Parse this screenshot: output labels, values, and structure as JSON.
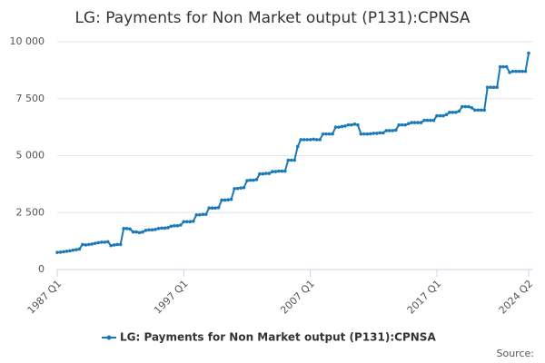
{
  "chart_data": {
    "type": "line",
    "title": "LG: Payments for Non Market output (P131):CPNSA",
    "source": "Source:",
    "categories": [
      "1987 Q1",
      null,
      null,
      null,
      null,
      null,
      null,
      null,
      null,
      null,
      null,
      null,
      null,
      null,
      null,
      null,
      null,
      null,
      null,
      null,
      null,
      null,
      null,
      null,
      null,
      null,
      null,
      null,
      null,
      null,
      null,
      null,
      null,
      null,
      null,
      null,
      null,
      null,
      null,
      null,
      "1997 Q1",
      null,
      null,
      null,
      null,
      null,
      null,
      null,
      null,
      null,
      null,
      null,
      null,
      null,
      null,
      null,
      null,
      null,
      null,
      null,
      null,
      null,
      null,
      null,
      null,
      null,
      null,
      null,
      null,
      null,
      null,
      null,
      null,
      null,
      null,
      null,
      null,
      null,
      null,
      null,
      "2007 Q1",
      null,
      null,
      null,
      null,
      null,
      null,
      null,
      null,
      null,
      null,
      null,
      null,
      null,
      null,
      null,
      null,
      null,
      null,
      null,
      null,
      null,
      null,
      null,
      null,
      null,
      null,
      null,
      null,
      null,
      null,
      null,
      null,
      null,
      null,
      null,
      null,
      null,
      null,
      null,
      "2017 Q1",
      null,
      null,
      null,
      null,
      null,
      null,
      null,
      null,
      null,
      null,
      null,
      null,
      null,
      null,
      null,
      null,
      null,
      null,
      null,
      null,
      null,
      null,
      null,
      null,
      null,
      null,
      null,
      null,
      "2024 Q2"
    ],
    "series": [
      {
        "name": "LG: Payments for Non Market output (P131):CPNSA",
        "color": "#1a7ab8",
        "values": [
          750,
          760,
          780,
          800,
          820,
          850,
          870,
          900,
          1100,
          1080,
          1100,
          1120,
          1150,
          1180,
          1200,
          1200,
          1220,
          1050,
          1080,
          1100,
          1100,
          1800,
          1800,
          1780,
          1650,
          1650,
          1620,
          1650,
          1720,
          1740,
          1740,
          1760,
          1800,
          1820,
          1820,
          1840,
          1900,
          1920,
          1920,
          1950,
          2100,
          2100,
          2100,
          2120,
          2400,
          2400,
          2420,
          2420,
          2700,
          2700,
          2700,
          2720,
          3050,
          3050,
          3060,
          3080,
          3550,
          3560,
          3580,
          3600,
          3900,
          3920,
          3920,
          3950,
          4200,
          4200,
          4220,
          4220,
          4300,
          4300,
          4320,
          4320,
          4320,
          4800,
          4800,
          4800,
          5400,
          5700,
          5700,
          5700,
          5700,
          5720,
          5700,
          5700,
          5950,
          5950,
          5950,
          5950,
          6250,
          6250,
          6280,
          6300,
          6350,
          6350,
          6380,
          6350,
          5950,
          5950,
          5950,
          5960,
          5980,
          5980,
          6000,
          6000,
          6100,
          6100,
          6100,
          6120,
          6350,
          6350,
          6350,
          6400,
          6450,
          6450,
          6450,
          6450,
          6550,
          6550,
          6550,
          6550,
          6750,
          6750,
          6750,
          6800,
          6900,
          6900,
          6900,
          6950,
          7150,
          7150,
          7150,
          7100,
          7000,
          7000,
          7000,
          7000,
          8000,
          8000,
          8000,
          8000,
          8900,
          8900,
          8900,
          8650,
          8700,
          8700,
          8700,
          8700,
          8700,
          9500
        ]
      }
    ],
    "ylim": [
      0,
      10000
    ],
    "yticks": [
      0,
      {
        "value": 2500,
        "label": "2 500"
      },
      {
        "value": 5000,
        "label": "5 000"
      },
      {
        "value": 7500,
        "label": "7 500"
      },
      {
        "value": 10000,
        "label": "10 000"
      }
    ],
    "grid": true
  }
}
